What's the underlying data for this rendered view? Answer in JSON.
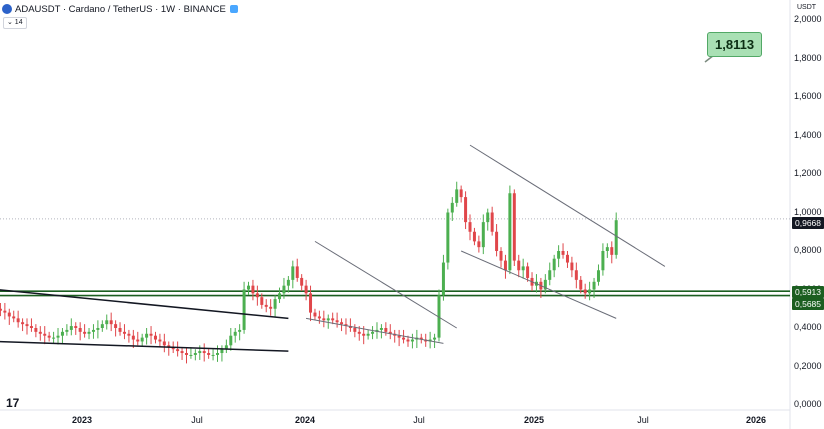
{
  "header": {
    "symbol": "ADAUSDT · Cardano / TetherUS · 1W · BINANCE",
    "indicator": "⌄ 14"
  },
  "y_axis": {
    "unit": "USDT",
    "ticks": [
      "2,0000",
      "1,8000",
      "1,6000",
      "1,4000",
      "1,2000",
      "1,0000",
      "0,8000",
      "0,6000",
      "0,4000",
      "0,2000",
      "0,0000"
    ]
  },
  "x_axis": {
    "labels": [
      {
        "text": "2023",
        "bold": true
      },
      {
        "text": "Jul",
        "bold": false
      },
      {
        "text": "2024",
        "bold": true
      },
      {
        "text": "Jul",
        "bold": false
      },
      {
        "text": "2025",
        "bold": true
      },
      {
        "text": "Jul",
        "bold": false
      },
      {
        "text": "2026",
        "bold": true
      }
    ]
  },
  "price_tags": {
    "current": "0,9668",
    "level_upper": "0,5913",
    "level_lower": "0,5685"
  },
  "callout": {
    "target": "1,8113"
  },
  "logo_text": "17",
  "chart_data": {
    "type": "candlestick",
    "series_name": "ADAUSDT",
    "ylim": [
      0,
      2.0
    ],
    "current_price": 0.9668,
    "target": 1.8113,
    "horizontal_levels": [
      0.5913,
      0.5685
    ],
    "colors": {
      "up": "#26a69a",
      "down": "#ef5350",
      "up_fill": "#4caf50",
      "down_fill": "#e0464a",
      "level": "#1b5e20"
    },
    "approx_closes": [
      0.5,
      0.49,
      0.48,
      0.46,
      0.45,
      0.43,
      0.42,
      0.41,
      0.4,
      0.38,
      0.37,
      0.36,
      0.35,
      0.35,
      0.36,
      0.38,
      0.39,
      0.41,
      0.4,
      0.38,
      0.37,
      0.38,
      0.39,
      0.4,
      0.42,
      0.44,
      0.42,
      0.4,
      0.38,
      0.37,
      0.36,
      0.34,
      0.33,
      0.35,
      0.37,
      0.36,
      0.34,
      0.33,
      0.31,
      0.3,
      0.29,
      0.28,
      0.27,
      0.26,
      0.26,
      0.27,
      0.28,
      0.27,
      0.26,
      0.26,
      0.27,
      0.29,
      0.31,
      0.36,
      0.38,
      0.39,
      0.6,
      0.62,
      0.58,
      0.56,
      0.52,
      0.51,
      0.5,
      0.55,
      0.58,
      0.62,
      0.65,
      0.72,
      0.66,
      0.62,
      0.58,
      0.48,
      0.46,
      0.45,
      0.44,
      0.45,
      0.44,
      0.43,
      0.42,
      0.41,
      0.4,
      0.38,
      0.37,
      0.36,
      0.37,
      0.38,
      0.39,
      0.4,
      0.38,
      0.37,
      0.36,
      0.35,
      0.34,
      0.33,
      0.34,
      0.35,
      0.34,
      0.33,
      0.34,
      0.35,
      0.57,
      0.74,
      1.0,
      1.05,
      1.12,
      1.08,
      0.95,
      0.9,
      0.85,
      0.82,
      0.95,
      1.0,
      0.9,
      0.8,
      0.75,
      0.7,
      1.1,
      0.75,
      0.7,
      0.72,
      0.66,
      0.62,
      0.64,
      0.6,
      0.65,
      0.7,
      0.76,
      0.8,
      0.78,
      0.74,
      0.7,
      0.65,
      0.6,
      0.58,
      0.6,
      0.64,
      0.7,
      0.8,
      0.82,
      0.78,
      0.96
    ],
    "trendlines": [
      {
        "from": [
          0,
          0.6
        ],
        "to": [
          66,
          0.45
        ]
      },
      {
        "from": [
          0,
          0.33
        ],
        "to": [
          66,
          0.28
        ]
      },
      {
        "from": [
          72,
          0.85
        ],
        "to": [
          104,
          0.4
        ]
      },
      {
        "from": [
          70,
          0.45
        ],
        "to": [
          101,
          0.32
        ]
      },
      {
        "from": [
          107,
          1.35
        ],
        "to": [
          151,
          0.72
        ]
      },
      {
        "from": [
          105,
          0.8
        ],
        "to": [
          140,
          0.45
        ]
      }
    ]
  }
}
